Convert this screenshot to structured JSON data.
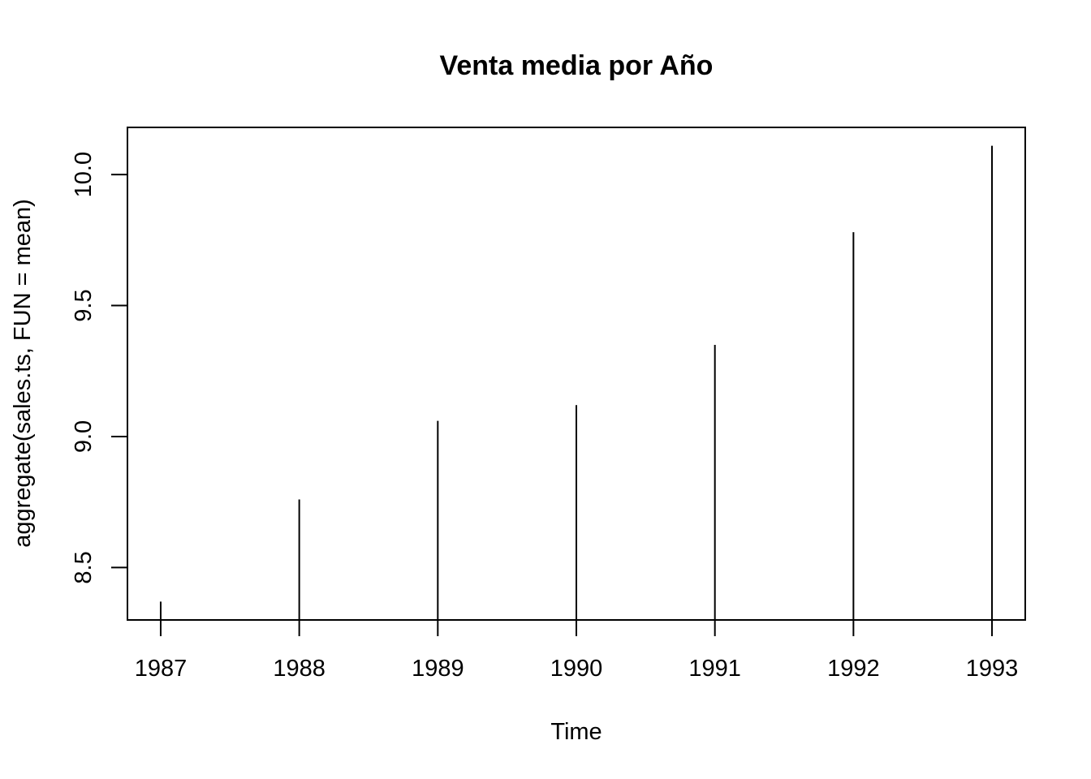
{
  "chart_data": {
    "type": "bar",
    "style": "vertical lines (histogram-like, type='h')",
    "title": "Venta media por Año",
    "xlabel": "Time",
    "ylabel": "aggregate(sales.ts, FUN = mean)",
    "x": [
      1987,
      1988,
      1989,
      1990,
      1991,
      1992,
      1993
    ],
    "values": [
      8.37,
      8.76,
      9.06,
      9.12,
      9.35,
      9.78,
      10.11
    ],
    "xlim": [
      1986.76,
      1993.24
    ],
    "ylim": [
      8.3,
      10.18
    ],
    "xticks": [
      "1987",
      "1988",
      "1989",
      "1990",
      "1991",
      "1992",
      "1993"
    ],
    "yticks": [
      "8.5",
      "9.0",
      "9.5",
      "10.0"
    ],
    "ytick_values": [
      8.5,
      9.0,
      9.5,
      10.0
    ],
    "grid": false,
    "legend": "none"
  }
}
